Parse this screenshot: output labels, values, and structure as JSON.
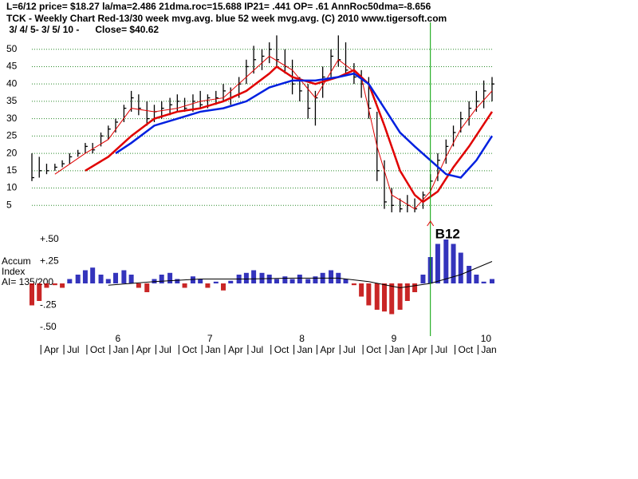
{
  "chart_data": [
    {
      "type": "ohlc",
      "header": [
        "L=6/12  price= $18.27  la/ma=2.486 21dma.roc=15.688 IP21= .441 OP= .61 AnnRoc50dma=-8.656",
        "TCK  - Weekly Chart  Red-13/30 week mvg.avg.  blue 52 week mvg.avg.  (C) 2010 www.tigersoft.com",
        " 3/ 4/ 5- 3/ 5/ 10 -      Close= $40.62"
      ],
      "x": [
        2005.17,
        2005.25,
        2005.33,
        2005.42,
        2005.5,
        2005.58,
        2005.67,
        2005.75,
        2005.83,
        2005.92,
        2006.0,
        2006.08,
        2006.17,
        2006.25,
        2006.33,
        2006.42,
        2006.5,
        2006.58,
        2006.67,
        2006.75,
        2006.83,
        2006.92,
        2007.0,
        2007.08,
        2007.17,
        2007.25,
        2007.33,
        2007.42,
        2007.5,
        2007.58,
        2007.67,
        2007.75,
        2007.83,
        2007.92,
        2008.0,
        2008.08,
        2008.17,
        2008.25,
        2008.33,
        2008.42,
        2008.5,
        2008.58,
        2008.67,
        2008.75,
        2008.83,
        2008.92,
        2009.0,
        2009.08,
        2009.17,
        2009.25,
        2009.33,
        2009.42,
        2009.5,
        2009.58,
        2009.67,
        2009.75,
        2009.83,
        2009.92,
        2010.0,
        2010.08,
        2010.17
      ],
      "high": [
        20,
        19,
        17,
        17,
        18,
        20,
        21,
        23,
        23,
        26,
        28,
        30,
        34,
        38,
        37,
        35,
        34,
        35,
        36,
        37,
        36,
        37,
        38,
        37,
        38,
        40,
        39,
        42,
        47,
        51,
        50,
        52,
        54,
        50,
        47,
        42,
        40,
        38,
        45,
        50,
        54,
        52,
        46,
        44,
        42,
        32,
        18,
        10,
        7,
        8,
        7,
        9,
        14,
        20,
        24,
        28,
        32,
        35,
        38,
        41,
        42
      ],
      "low": [
        12,
        13,
        14,
        15,
        16,
        17,
        19,
        20,
        20,
        22,
        24,
        26,
        29,
        32,
        31,
        28,
        29,
        30,
        31,
        32,
        32,
        32,
        33,
        33,
        34,
        35,
        34,
        36,
        40,
        43,
        44,
        46,
        45,
        43,
        37,
        35,
        30,
        28,
        36,
        42,
        45,
        43,
        40,
        36,
        30,
        12,
        4,
        3,
        3,
        3,
        3,
        4,
        8,
        12,
        17,
        22,
        26,
        28,
        32,
        33,
        35
      ],
      "close": [
        13,
        15,
        15,
        16,
        17,
        19,
        20,
        22,
        21,
        25,
        27,
        29,
        33,
        36,
        33,
        30,
        32,
        33,
        34,
        35,
        33,
        35,
        34,
        36,
        36,
        38,
        36,
        40,
        45,
        47,
        48,
        50,
        47,
        45,
        40,
        38,
        33,
        36,
        42,
        48,
        47,
        44,
        42,
        40,
        33,
        15,
        6,
        5,
        4,
        5,
        4,
        8,
        12,
        18,
        22,
        26,
        30,
        33,
        35,
        38,
        40
      ],
      "series": [
        {
          "name": "Red-13/30 week mvg.avg.",
          "color": "#e00000",
          "width": 2.5,
          "x": [
            2005.75,
            2006.0,
            2006.25,
            2006.5,
            2006.75,
            2007.0,
            2007.25,
            2007.5,
            2007.75,
            2007.83,
            2008.0,
            2008.25,
            2008.5,
            2008.67,
            2008.83,
            2009.0,
            2009.17,
            2009.33,
            2009.42,
            2009.58,
            2009.75,
            2009.92,
            2010.17
          ],
          "values": [
            15,
            19,
            25,
            30,
            32,
            33,
            35,
            38,
            43,
            45,
            42,
            40,
            42,
            44,
            40,
            28,
            15,
            8,
            6,
            9,
            16,
            22,
            32
          ]
        },
        {
          "name": "13 week",
          "color": "#e00000",
          "width": 1,
          "x": [
            2005.42,
            2005.75,
            2006.0,
            2006.25,
            2006.5,
            2006.75,
            2007.0,
            2007.25,
            2007.5,
            2007.75,
            2008.0,
            2008.25,
            2008.5,
            2008.75,
            2008.92,
            2009.08,
            2009.33,
            2009.5,
            2009.67,
            2009.83,
            2010.0,
            2010.17
          ],
          "values": [
            14,
            20,
            24,
            33,
            32,
            33,
            35,
            36,
            42,
            48,
            44,
            36,
            47,
            42,
            22,
            8,
            4,
            9,
            19,
            27,
            33,
            38
          ]
        },
        {
          "name": "blue 52 week mvg.avg.",
          "color": "#0020e0",
          "width": 2.5,
          "x": [
            2006.08,
            2006.25,
            2006.5,
            2006.75,
            2007.0,
            2007.25,
            2007.5,
            2007.75,
            2008.0,
            2008.25,
            2008.5,
            2008.67,
            2008.83,
            2009.0,
            2009.17,
            2009.33,
            2009.5,
            2009.67,
            2009.83,
            2010.0,
            2010.17
          ],
          "values": [
            20,
            23,
            28,
            30,
            32,
            33,
            35,
            39,
            41,
            41,
            42,
            43,
            40,
            33,
            26,
            22,
            18,
            14,
            13,
            18,
            25
          ]
        }
      ],
      "xlim": [
        2005.17,
        2010.17
      ],
      "ylim": [
        0,
        55
      ],
      "yticks": [
        5,
        10,
        15,
        20,
        25,
        30,
        35,
        40,
        45,
        50
      ],
      "grid": true
    },
    {
      "type": "bar",
      "labels": [
        "Accum",
        "Index",
        "AI= 135/200"
      ],
      "x": [
        2005.17,
        2005.25,
        2005.33,
        2005.42,
        2005.5,
        2005.58,
        2005.67,
        2005.75,
        2005.83,
        2005.92,
        2006.0,
        2006.08,
        2006.17,
        2006.25,
        2006.33,
        2006.42,
        2006.5,
        2006.58,
        2006.67,
        2006.75,
        2006.83,
        2006.92,
        2007.0,
        2007.08,
        2007.17,
        2007.25,
        2007.33,
        2007.42,
        2007.5,
        2007.58,
        2007.67,
        2007.75,
        2007.83,
        2007.92,
        2008.0,
        2008.08,
        2008.17,
        2008.25,
        2008.33,
        2008.42,
        2008.5,
        2008.58,
        2008.67,
        2008.75,
        2008.83,
        2008.92,
        2009.0,
        2009.08,
        2009.17,
        2009.25,
        2009.33,
        2009.42,
        2009.5,
        2009.58,
        2009.67,
        2009.75,
        2009.83,
        2009.92,
        2010.0,
        2010.08,
        2010.17
      ],
      "values": [
        -0.25,
        -0.2,
        -0.05,
        -0.02,
        -0.05,
        0.05,
        0.1,
        0.15,
        0.18,
        0.1,
        0.05,
        0.12,
        0.15,
        0.1,
        -0.05,
        -0.1,
        0.05,
        0.1,
        0.12,
        0.05,
        -0.05,
        0.08,
        0.05,
        -0.05,
        0.02,
        -0.08,
        0.03,
        0.1,
        0.12,
        0.15,
        0.12,
        0.1,
        0.05,
        0.08,
        0.05,
        0.1,
        0.05,
        0.08,
        0.12,
        0.15,
        0.12,
        0.05,
        -0.02,
        -0.15,
        -0.25,
        -0.3,
        -0.32,
        -0.35,
        -0.3,
        -0.2,
        -0.1,
        0.1,
        0.3,
        0.45,
        0.5,
        0.45,
        0.35,
        0.2,
        0.1,
        0.02,
        0.05
      ],
      "colors": {
        "positive": "#1010b0",
        "negative": "#c00000"
      },
      "series": [
        {
          "color": "#000000",
          "x": [
            2006.0,
            2006.5,
            2007.0,
            2007.5,
            2008.0,
            2008.5,
            2008.83,
            2009.17,
            2009.5,
            2009.83,
            2010.17
          ],
          "values": [
            -0.02,
            0.02,
            0.05,
            0.05,
            0.06,
            0.06,
            0.02,
            -0.05,
            0.0,
            0.1,
            0.25
          ]
        }
      ],
      "annotation": {
        "text": "B12",
        "x": 2009.5,
        "color": "#00a000"
      },
      "xlim": [
        2005.17,
        2010.17
      ],
      "ylim": [
        -0.6,
        0.6
      ],
      "yticks": [
        {
          "value": 0.5,
          "label": "+.50"
        },
        {
          "value": 0.25,
          "label": "+.25"
        },
        {
          "value": -0.25,
          "label": "-.25"
        },
        {
          "value": -0.5,
          "label": "-.50"
        }
      ],
      "xticks": [
        {
          "value": 2006,
          "label": "6"
        },
        {
          "value": 2007,
          "label": "7"
        },
        {
          "value": 2008,
          "label": "8"
        },
        {
          "value": 2009,
          "label": "9"
        },
        {
          "value": 2010,
          "label": "10"
        }
      ],
      "month_ticks": [
        {
          "value": 2005.25,
          "label": "Apr"
        },
        {
          "value": 2005.5,
          "label": "Jul"
        },
        {
          "value": 2005.75,
          "label": "Oct"
        },
        {
          "value": 2006.0,
          "label": "Jan"
        },
        {
          "value": 2006.25,
          "label": "Apr"
        },
        {
          "value": 2006.5,
          "label": "Jul"
        },
        {
          "value": 2006.75,
          "label": "Oct"
        },
        {
          "value": 2007.0,
          "label": "Jan"
        },
        {
          "value": 2007.25,
          "label": "Apr"
        },
        {
          "value": 2007.5,
          "label": "Jul"
        },
        {
          "value": 2007.75,
          "label": "Oct"
        },
        {
          "value": 2008.0,
          "label": "Jan"
        },
        {
          "value": 2008.25,
          "label": "Apr"
        },
        {
          "value": 2008.5,
          "label": "Jul"
        },
        {
          "value": 2008.75,
          "label": "Oct"
        },
        {
          "value": 2009.0,
          "label": "Jan"
        },
        {
          "value": 2009.25,
          "label": "Apr"
        },
        {
          "value": 2009.5,
          "label": "Jul"
        },
        {
          "value": 2009.75,
          "label": "Oct"
        },
        {
          "value": 2010.0,
          "label": "Jan"
        }
      ]
    }
  ]
}
